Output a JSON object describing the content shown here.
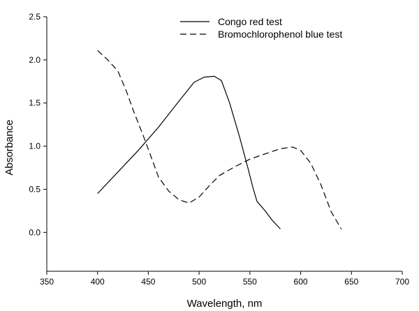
{
  "chart_data": {
    "type": "line",
    "xlabel": "Wavelength, nm",
    "ylabel": "Absorbance",
    "xlim": [
      350,
      700
    ],
    "ylim": [
      -0.45,
      2.5
    ],
    "xticks": [
      350,
      400,
      450,
      500,
      550,
      600,
      650,
      700
    ],
    "yticks": [
      0.0,
      0.5,
      1.0,
      1.5,
      2.0,
      2.5
    ],
    "ytick_labels": [
      "0.0",
      "0.5",
      "1.0",
      "1.5",
      "2.0",
      "2.5"
    ],
    "grid": false,
    "legend_position": "top-right",
    "series": [
      {
        "name": "Congo red test",
        "style": "solid",
        "points": [
          [
            400,
            0.45
          ],
          [
            420,
            0.7
          ],
          [
            440,
            0.95
          ],
          [
            460,
            1.22
          ],
          [
            480,
            1.52
          ],
          [
            495,
            1.74
          ],
          [
            505,
            1.8
          ],
          [
            515,
            1.81
          ],
          [
            522,
            1.76
          ],
          [
            530,
            1.5
          ],
          [
            540,
            1.1
          ],
          [
            548,
            0.75
          ],
          [
            553,
            0.52
          ],
          [
            557,
            0.36
          ],
          [
            565,
            0.25
          ],
          [
            572,
            0.14
          ],
          [
            580,
            0.04
          ]
        ]
      },
      {
        "name": "Bromochlorophenol blue test",
        "style": "dashed",
        "points": [
          [
            400,
            2.11
          ],
          [
            410,
            2.0
          ],
          [
            420,
            1.87
          ],
          [
            428,
            1.65
          ],
          [
            435,
            1.42
          ],
          [
            445,
            1.12
          ],
          [
            452,
            0.9
          ],
          [
            460,
            0.64
          ],
          [
            470,
            0.48
          ],
          [
            480,
            0.38
          ],
          [
            490,
            0.34
          ],
          [
            500,
            0.41
          ],
          [
            510,
            0.54
          ],
          [
            520,
            0.66
          ],
          [
            535,
            0.76
          ],
          [
            550,
            0.85
          ],
          [
            565,
            0.91
          ],
          [
            580,
            0.97
          ],
          [
            592,
            0.99
          ],
          [
            600,
            0.95
          ],
          [
            610,
            0.8
          ],
          [
            620,
            0.55
          ],
          [
            630,
            0.24
          ],
          [
            640,
            0.04
          ]
        ]
      }
    ]
  }
}
